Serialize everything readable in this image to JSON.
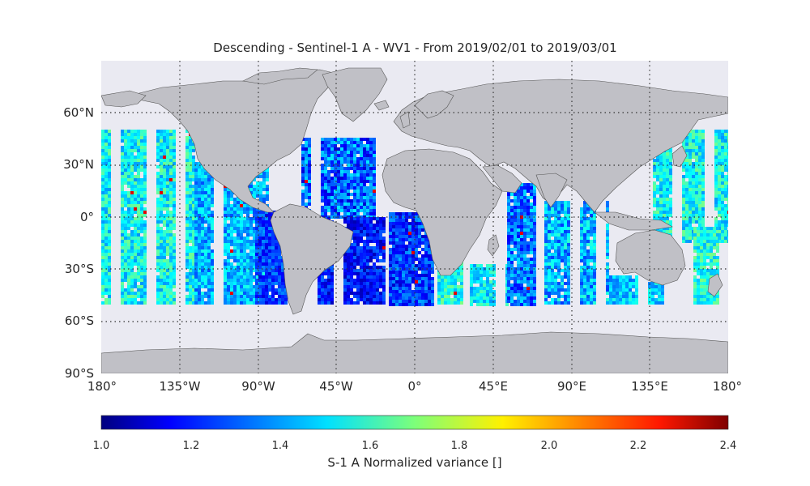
{
  "title": "Descending - Sentinel-1 A - WV1 - From 2019/02/01 to 2019/03/01",
  "lat_labels": [
    "60°N",
    "30°N",
    "0°",
    "30°S",
    "60°S",
    "90°S"
  ],
  "lon_labels": [
    "180°",
    "135°W",
    "90°W",
    "45°W",
    "0°",
    "45°E",
    "90°E",
    "135°E",
    "180°"
  ],
  "colorbar": {
    "label": "S-1 A Normalized variance []",
    "ticks": [
      "1.0",
      "1.2",
      "1.4",
      "1.6",
      "1.8",
      "2.0",
      "2.2",
      "2.4"
    ],
    "range": [
      1.0,
      2.4
    ],
    "colormap": "jet"
  },
  "colors": {
    "ocean": "#eaeaf2",
    "land": "#c0c0c6",
    "coast": "#555555",
    "grid": "#333333"
  }
}
